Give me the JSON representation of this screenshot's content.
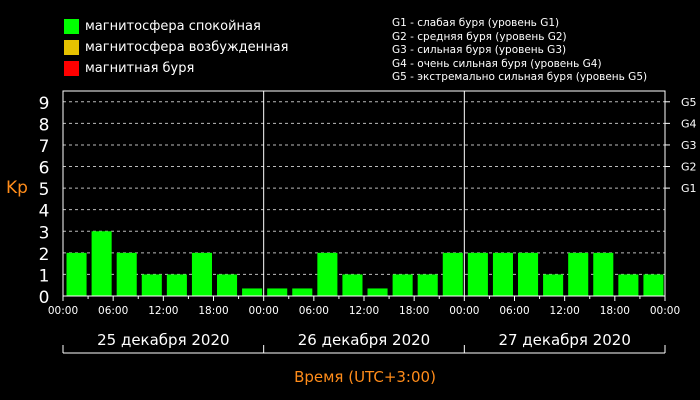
{
  "legend": {
    "items": [
      {
        "label": "магнитосфера спокойная",
        "color": "#00ff00"
      },
      {
        "label": "магнитосфера возбужденная",
        "color": "#e6c200"
      },
      {
        "label": "магнитная буря",
        "color": "#ff0000"
      }
    ],
    "g_levels": [
      "G1 - слабая буря (уровень G1)",
      "G2 - средняя буря (уровень G2)",
      "G3 - сильная буря (уровень G3)",
      "G4 - очень сильная буря (уровень G4)",
      "G5 - экстремально сильная буря (уровень G5)"
    ]
  },
  "chart_data": {
    "type": "bar",
    "ylabel": "Kp",
    "xlabel": "Время (UTC+3:00)",
    "ylim": [
      0,
      9.5
    ],
    "y_ticks": [
      "0",
      "1",
      "2",
      "3",
      "4",
      "5",
      "6",
      "7",
      "8",
      "9"
    ],
    "right_ticks": [
      {
        "label": "G1",
        "value": 5
      },
      {
        "label": "G2",
        "value": 6
      },
      {
        "label": "G3",
        "value": 7
      },
      {
        "label": "G4",
        "value": 8
      },
      {
        "label": "G5",
        "value": 9
      }
    ],
    "time_ticks": [
      "00:00",
      "06:00",
      "12:00",
      "18:00",
      "00:00",
      "06:00",
      "12:00",
      "18:00",
      "00:00",
      "06:00",
      "12:00",
      "18:00",
      "00:00"
    ],
    "days": [
      "25 декабря 2020",
      "26 декабря 2020",
      "27 декабря 2020"
    ],
    "bar_color": "#00ff00",
    "values": [
      2,
      3,
      2,
      1,
      1,
      2,
      1,
      0,
      0,
      0,
      2,
      1,
      0,
      1,
      1,
      2,
      2,
      2,
      2,
      1,
      2,
      2,
      1,
      1
    ],
    "grid": true
  }
}
